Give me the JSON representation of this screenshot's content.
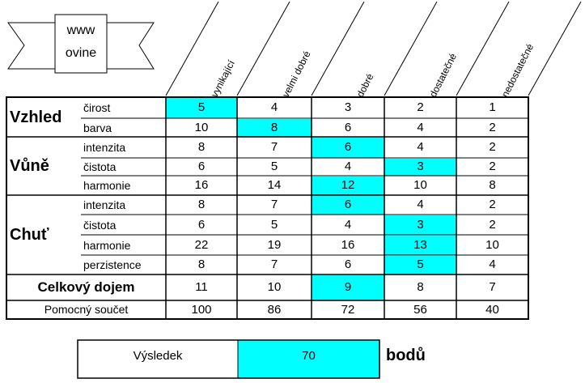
{
  "logo": {
    "line1": "www",
    "line2": "ovine"
  },
  "columns": [
    "vynikající",
    "velmi dobré",
    "dobré",
    "dostatečné",
    "nedostatečné"
  ],
  "highlight_color": "#00FFFF",
  "groups": [
    {
      "name": "Vzhled",
      "rows": [
        {
          "label": "čirost",
          "values": [
            "5",
            "4",
            "3",
            "2",
            "1"
          ],
          "selected": 0
        },
        {
          "label": "barva",
          "values": [
            "10",
            "8",
            "6",
            "4",
            "2"
          ],
          "selected": 1
        }
      ]
    },
    {
      "name": "Vůně",
      "rows": [
        {
          "label": "intenzita",
          "values": [
            "8",
            "7",
            "6",
            "4",
            "2"
          ],
          "selected": 2
        },
        {
          "label": "čistota",
          "values": [
            "6",
            "5",
            "4",
            "3",
            "2"
          ],
          "selected": 3
        },
        {
          "label": "harmonie",
          "values": [
            "16",
            "14",
            "12",
            "10",
            "8"
          ],
          "selected": 2
        }
      ]
    },
    {
      "name": "Chuť",
      "rows": [
        {
          "label": "intenzita",
          "values": [
            "8",
            "7",
            "6",
            "4",
            "2"
          ],
          "selected": 2
        },
        {
          "label": "čistota",
          "values": [
            "6",
            "5",
            "4",
            "3",
            "2"
          ],
          "selected": 3
        },
        {
          "label": "harmonie",
          "values": [
            "22",
            "19",
            "16",
            "13",
            "10"
          ],
          "selected": 3
        },
        {
          "label": "perzistence",
          "values": [
            "8",
            "7",
            "6",
            "5",
            "4"
          ],
          "selected": 3
        }
      ]
    }
  ],
  "overall": {
    "label": "Celkový dojem",
    "values": [
      "11",
      "10",
      "9",
      "8",
      "7"
    ],
    "selected": 2
  },
  "helper": {
    "label": "Pomocný součet",
    "values": [
      "100",
      "86",
      "72",
      "56",
      "40"
    ]
  },
  "result": {
    "label": "Výsledek",
    "value": "70",
    "unit": "bodů"
  }
}
